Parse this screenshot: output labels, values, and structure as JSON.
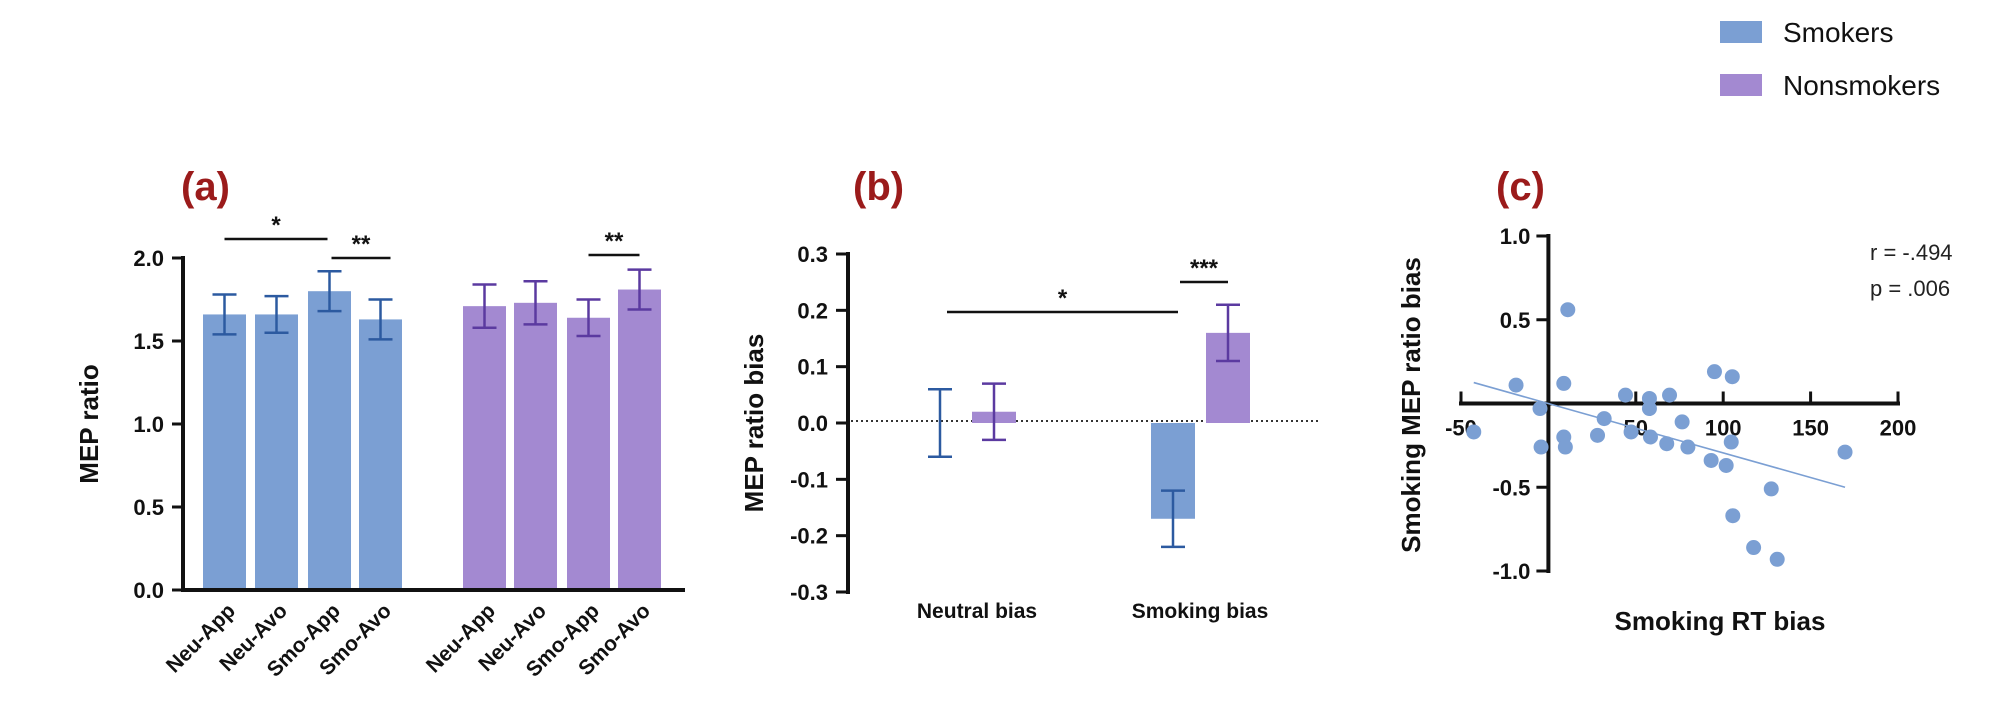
{
  "colors": {
    "smokers": "#7b9fd3",
    "smokers_dark": "#2c5aa0",
    "nonsmokers": "#a389d1",
    "nonsmokers_dark": "#5b3aa0",
    "panel_label": "#9b1b1b"
  },
  "legend": {
    "items": [
      {
        "label": "Smokers",
        "color": "#7b9fd3"
      },
      {
        "label": "Nonsmokers",
        "color": "#a389d1"
      }
    ],
    "placement": "top-right"
  },
  "chart_data": [
    {
      "panel": "(a)",
      "type": "bar",
      "title": "",
      "xlabel": "",
      "ylabel": "MEP ratio",
      "ylim": [
        0,
        2.0
      ],
      "yticks": [
        "0.0",
        "0.5",
        "1.0",
        "1.5",
        "2.0"
      ],
      "yticks_values": [
        0,
        0.5,
        1.0,
        1.5,
        2.0
      ],
      "categories": [
        "Neu-App",
        "Neu-Avo",
        "Smo-App",
        "Smo-Avo"
      ],
      "series": [
        {
          "name": "Smokers",
          "values": [
            1.66,
            1.66,
            1.8,
            1.63
          ],
          "errors": [
            0.12,
            0.11,
            0.12,
            0.12
          ]
        },
        {
          "name": "Nonsmokers",
          "values": [
            1.71,
            1.73,
            1.64,
            1.81
          ],
          "errors": [
            0.13,
            0.13,
            0.11,
            0.12
          ]
        }
      ],
      "significance": [
        {
          "group": "Smokers",
          "from": "Neu-App",
          "to": "Smo-App",
          "label": "*"
        },
        {
          "group": "Smokers",
          "from": "Smo-App",
          "to": "Smo-Avo",
          "label": "**"
        },
        {
          "group": "Nonsmokers",
          "from": "Smo-App",
          "to": "Smo-Avo",
          "label": "**"
        }
      ]
    },
    {
      "panel": "(b)",
      "type": "bar",
      "title": "",
      "xlabel": "",
      "ylabel": "MEP ratio bias",
      "ylim": [
        -0.3,
        0.3
      ],
      "yticks": [
        "-0.3",
        "-0.2",
        "-0.1",
        "0.0",
        "0.1",
        "0.2",
        "0.3"
      ],
      "yticks_values": [
        -0.3,
        -0.2,
        -0.1,
        0,
        0.1,
        0.2,
        0.3
      ],
      "categories": [
        "Neutral bias",
        "Smoking bias"
      ],
      "series": [
        {
          "name": "Smokers",
          "values": [
            0.0,
            -0.17
          ],
          "errors": [
            0.06,
            0.05
          ]
        },
        {
          "name": "Nonsmokers",
          "values": [
            0.02,
            0.16
          ],
          "errors": [
            0.05,
            0.05
          ]
        }
      ],
      "reference_line": 0,
      "significance": [
        {
          "from": "Neutral bias (Smokers)",
          "to": "Smoking bias (Smokers)",
          "label": "*"
        },
        {
          "from": "Smoking bias (Smokers)",
          "to": "Smoking bias (Nonsmokers)",
          "label": "***"
        }
      ]
    },
    {
      "panel": "(c)",
      "type": "scatter",
      "title": "",
      "xlabel": "Smoking RT bias",
      "ylabel": "Smoking MEP ratio bias",
      "xlim": [
        -50,
        200
      ],
      "ylim": [
        -1.0,
        1.0
      ],
      "xticks": [
        "-50",
        "50",
        "100",
        "150",
        "200"
      ],
      "xticks_values": [
        -50,
        0,
        50,
        100,
        150,
        200
      ],
      "yticks": [
        "-1.0",
        "-0.5",
        "0.5",
        "1.0"
      ],
      "yticks_values": [
        -1.0,
        -0.5,
        0,
        0.5,
        1.0
      ],
      "series": [
        {
          "name": "Smokers",
          "points": [
            [
              -42.7,
              -0.17
            ],
            [
              -18.5,
              0.11
            ],
            [
              -4.8,
              -0.03
            ],
            [
              -4.2,
              -0.26
            ],
            [
              8.8,
              0.12
            ],
            [
              11.1,
              0.56
            ],
            [
              8.8,
              -0.2
            ],
            [
              9.7,
              -0.26
            ],
            [
              28.1,
              -0.19
            ],
            [
              31.9,
              -0.09
            ],
            [
              44.1,
              0.05
            ],
            [
              47.3,
              -0.17
            ],
            [
              57.8,
              0.03
            ],
            [
              57.8,
              -0.03
            ],
            [
              58.4,
              -0.2
            ],
            [
              69.3,
              0.05
            ],
            [
              67.7,
              -0.24
            ],
            [
              76.5,
              -0.11
            ],
            [
              79.8,
              -0.26
            ],
            [
              93.1,
              -0.34
            ],
            [
              95.0,
              0.19
            ],
            [
              101.7,
              -0.37
            ],
            [
              104.6,
              -0.23
            ],
            [
              105.2,
              0.16
            ],
            [
              105.5,
              -0.67
            ],
            [
              117.4,
              -0.86
            ],
            [
              127.5,
              -0.51
            ],
            [
              130.9,
              -0.93
            ],
            [
              169.7,
              -0.29
            ]
          ]
        }
      ],
      "regression": {
        "x": [
          -42.7,
          169.7
        ],
        "y": [
          0.125,
          -0.5
        ]
      },
      "annotations": [
        "r = -.494",
        "p = .006"
      ]
    }
  ]
}
